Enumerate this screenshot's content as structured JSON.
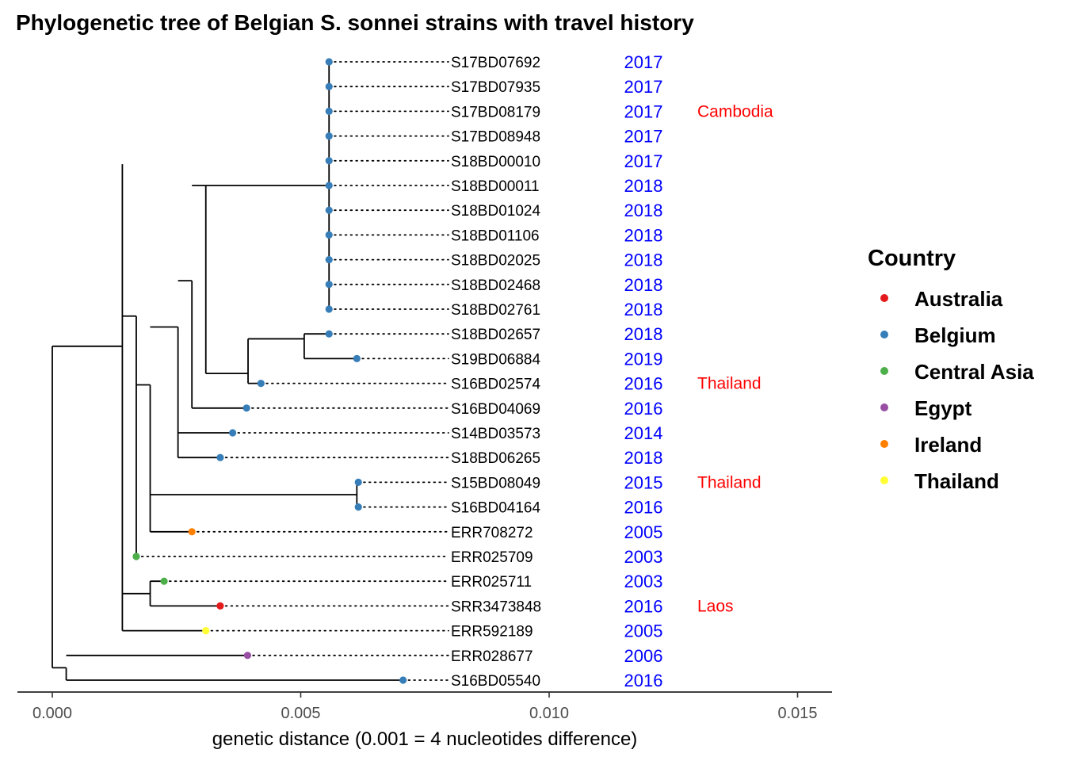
{
  "chart_data": {
    "type": "phylogenetic-tree",
    "title": "Phylogenetic tree of Belgian S. sonnei strains with travel history",
    "xlabel": "genetic distance (0.001 = 4 nucleotides difference)",
    "xlim": [
      -0.0007,
      0.0158
    ],
    "x_ticks": [
      0.0,
      0.005,
      0.01,
      0.015
    ],
    "x_tick_labels": [
      "0.000",
      "0.005",
      "0.010",
      "0.015"
    ],
    "legend": {
      "title": "Country",
      "position": "right",
      "items": [
        {
          "label": "Australia",
          "color": "#e41a1c"
        },
        {
          "label": "Belgium",
          "color": "#377eb8"
        },
        {
          "label": "Central Asia",
          "color": "#4daf4a"
        },
        {
          "label": "Egypt",
          "color": "#984ea3"
        },
        {
          "label": "Ireland",
          "color": "#ff7f00"
        },
        {
          "label": "Thailand",
          "color": "#ffff33"
        }
      ]
    },
    "tips": [
      {
        "id": "S17BD07692",
        "x": 0.00557,
        "year": "2017",
        "country": "Belgium",
        "travel": ""
      },
      {
        "id": "S17BD07935",
        "x": 0.00557,
        "year": "2017",
        "country": "Belgium",
        "travel": ""
      },
      {
        "id": "S17BD08179",
        "x": 0.00557,
        "year": "2017",
        "country": "Belgium",
        "travel": "Cambodia"
      },
      {
        "id": "S17BD08948",
        "x": 0.00557,
        "year": "2017",
        "country": "Belgium",
        "travel": ""
      },
      {
        "id": "S18BD00010",
        "x": 0.00557,
        "year": "2017",
        "country": "Belgium",
        "travel": ""
      },
      {
        "id": "S18BD00011",
        "x": 0.00557,
        "year": "2018",
        "country": "Belgium",
        "travel": ""
      },
      {
        "id": "S18BD01024",
        "x": 0.00557,
        "year": "2018",
        "country": "Belgium",
        "travel": ""
      },
      {
        "id": "S18BD01106",
        "x": 0.00557,
        "year": "2018",
        "country": "Belgium",
        "travel": ""
      },
      {
        "id": "S18BD02025",
        "x": 0.00557,
        "year": "2018",
        "country": "Belgium",
        "travel": ""
      },
      {
        "id": "S18BD02468",
        "x": 0.00557,
        "year": "2018",
        "country": "Belgium",
        "travel": ""
      },
      {
        "id": "S18BD02761",
        "x": 0.00557,
        "year": "2018",
        "country": "Belgium",
        "travel": ""
      },
      {
        "id": "S18BD02657",
        "x": 0.00557,
        "year": "2018",
        "country": "Belgium",
        "travel": ""
      },
      {
        "id": "S19BD06884",
        "x": 0.00613,
        "year": "2019",
        "country": "Belgium",
        "travel": ""
      },
      {
        "id": "S16BD02574",
        "x": 0.0042,
        "year": "2016",
        "country": "Belgium",
        "travel": "Thailand"
      },
      {
        "id": "S16BD04069",
        "x": 0.00391,
        "year": "2016",
        "country": "Belgium",
        "travel": ""
      },
      {
        "id": "S14BD03573",
        "x": 0.00363,
        "year": "2014",
        "country": "Belgium",
        "travel": ""
      },
      {
        "id": "S18BD06265",
        "x": 0.00338,
        "year": "2018",
        "country": "Belgium",
        "travel": ""
      },
      {
        "id": "S15BD08049",
        "x": 0.00616,
        "year": "2015",
        "country": "Belgium",
        "travel": "Thailand"
      },
      {
        "id": "S16BD04164",
        "x": 0.00616,
        "year": "2016",
        "country": "Belgium",
        "travel": ""
      },
      {
        "id": "ERR708272",
        "x": 0.00281,
        "year": "2005",
        "country": "Ireland",
        "travel": ""
      },
      {
        "id": "ERR025709",
        "x": 0.00169,
        "year": "2003",
        "country": "Central Asia",
        "travel": ""
      },
      {
        "id": "ERR025711",
        "x": 0.00225,
        "year": "2003",
        "country": "Central Asia",
        "travel": ""
      },
      {
        "id": "SRR3473848",
        "x": 0.00338,
        "year": "2016",
        "country": "Australia",
        "travel": "Laos"
      },
      {
        "id": "ERR592189",
        "x": 0.00309,
        "year": "2005",
        "country": "Thailand",
        "travel": ""
      },
      {
        "id": "ERR028677",
        "x": 0.00393,
        "year": "2006",
        "country": "Egypt",
        "travel": ""
      },
      {
        "id": "S16BD05540",
        "x": 0.00706,
        "year": "2016",
        "country": "Belgium",
        "travel": ""
      }
    ],
    "nodes": [
      {
        "x": 0.0,
        "from": 11.5,
        "to": 24.5
      },
      {
        "x": 0.00028,
        "from": 24.5,
        "to": 25
      },
      {
        "x": 0.00141,
        "from": 4.14,
        "to": 23
      },
      {
        "x": 0.00169,
        "from": 10.28,
        "to": 20
      },
      {
        "x": 0.00197,
        "from": 13.06,
        "to": 19
      },
      {
        "x": 0.00253,
        "from": 10.72,
        "to": 16
      },
      {
        "x": 0.00281,
        "from": 8.85,
        "to": 14
      },
      {
        "x": 0.00309,
        "from": 5,
        "to": 12.6
      },
      {
        "x": 0.00394,
        "from": 11.2,
        "to": 13
      },
      {
        "x": 0.00507,
        "from": 11,
        "to": 12
      },
      {
        "x": 0.00197,
        "from": 21,
        "to": 22
      },
      {
        "x": 0.00613,
        "from": 17,
        "to": 18
      }
    ]
  }
}
